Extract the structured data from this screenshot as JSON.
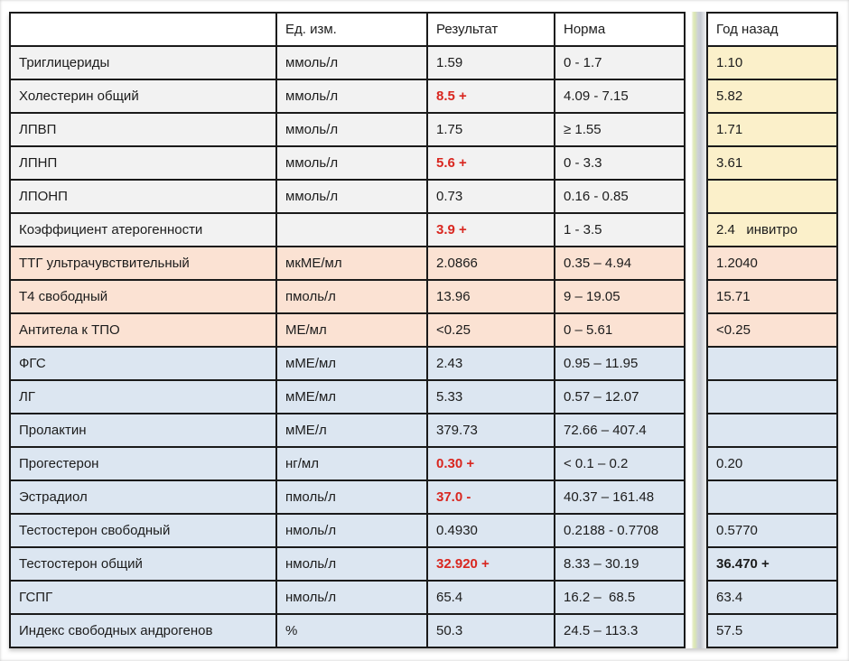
{
  "colors": {
    "border_dark": "#1a1a1a",
    "alert_red": "#d9261f",
    "group_lipid_bg": "#f2f2f2",
    "group_thyroid_bg": "#fbe2d3",
    "group_hormone_bg": "#dce6f1",
    "year_lipid_bg": "#fbf0ca"
  },
  "table": {
    "headers": {
      "name": "",
      "units": "Ед. изм.",
      "result": "Результат",
      "norm": "Норма"
    },
    "year_ago_header": "Год назад",
    "rows": [
      {
        "name": "Триглицериды",
        "units": "ммоль/л",
        "result": "1.59",
        "result_flag": "normal",
        "norm": "0 - 1.7",
        "year_ago": "1.10",
        "year_flag": "normal",
        "group": "lipid"
      },
      {
        "name": "Холестерин общий",
        "units": "ммоль/л",
        "result": "8.5 +",
        "result_flag": "alert",
        "norm": "4.09 - 7.15",
        "year_ago": "5.82",
        "year_flag": "normal",
        "group": "lipid"
      },
      {
        "name": "ЛПВП",
        "units": "ммоль/л",
        "result": "1.75",
        "result_flag": "normal",
        "norm": "≥ 1.55",
        "year_ago": "1.71",
        "year_flag": "normal",
        "group": "lipid"
      },
      {
        "name": "ЛПНП",
        "units": "ммоль/л",
        "result": "5.6 +",
        "result_flag": "alert",
        "norm": "0 - 3.3",
        "year_ago": "3.61",
        "year_flag": "normal",
        "group": "lipid"
      },
      {
        "name": "ЛПОНП",
        "units": "ммоль/л",
        "result": "0.73",
        "result_flag": "normal",
        "norm": "0.16 - 0.85",
        "year_ago": "",
        "year_flag": "normal",
        "group": "lipid"
      },
      {
        "name": "Коэффициент атерогенности",
        "units": "",
        "result": "3.9 +",
        "result_flag": "alert",
        "norm": "1 - 3.5",
        "year_ago": "2.4   инвитро",
        "year_flag": "normal",
        "group": "lipid"
      },
      {
        "name": "ТТГ ультрачувствительный",
        "units": "мкМЕ/мл",
        "result": "2.0866",
        "result_flag": "normal",
        "norm": "0.35 – 4.94",
        "year_ago": "1.2040",
        "year_flag": "normal",
        "group": "thyroid"
      },
      {
        "name": "Т4 свободный",
        "units": "пмоль/л",
        "result": "13.96",
        "result_flag": "normal",
        "norm": "9 – 19.05",
        "year_ago": "15.71",
        "year_flag": "normal",
        "group": "thyroid"
      },
      {
        "name": "Антитела к ТПО",
        "units": "МЕ/мл",
        "result": "<0.25",
        "result_flag": "normal",
        "norm": "0 – 5.61",
        "year_ago": "<0.25",
        "year_flag": "normal",
        "group": "thyroid"
      },
      {
        "name": "ФГС",
        "units": "мМЕ/мл",
        "result": "2.43",
        "result_flag": "normal",
        "norm": "0.95 – 11.95",
        "year_ago": "",
        "year_flag": "normal",
        "group": "hormone"
      },
      {
        "name": "ЛГ",
        "units": "мМЕ/мл",
        "result": "5.33",
        "result_flag": "normal",
        "norm": "0.57 – 12.07",
        "year_ago": "",
        "year_flag": "normal",
        "group": "hormone"
      },
      {
        "name": "Пролактин",
        "units": "мМЕ/л",
        "result": "379.73",
        "result_flag": "normal",
        "norm": "72.66 – 407.4",
        "year_ago": "",
        "year_flag": "normal",
        "group": "hormone"
      },
      {
        "name": "Прогестерон",
        "units": "нг/мл",
        "result": "0.30 +",
        "result_flag": "alert",
        "norm": "< 0.1 – 0.2",
        "year_ago": "0.20",
        "year_flag": "normal",
        "group": "hormone"
      },
      {
        "name": "Эстрадиол",
        "units": "пмоль/л",
        "result": "37.0 -",
        "result_flag": "alert",
        "norm": "40.37 – 161.48",
        "year_ago": "",
        "year_flag": "normal",
        "group": "hormone"
      },
      {
        "name": "Тестостерон свободный",
        "units": "нмоль/л",
        "result": "0.4930",
        "result_flag": "normal",
        "norm": "0.2188 - 0.7708",
        "year_ago": "0.5770",
        "year_flag": "normal",
        "group": "hormone"
      },
      {
        "name": "Тестостерон общий",
        "units": "нмоль/л",
        "result": "32.920 +",
        "result_flag": "alert",
        "norm": "8.33 – 30.19",
        "year_ago": "36.470 +",
        "year_flag": "bold",
        "group": "hormone"
      },
      {
        "name": "ГСПГ",
        "units": "нмоль/л",
        "result": "65.4",
        "result_flag": "normal",
        "norm": "16.2 –  68.5",
        "year_ago": "63.4",
        "year_flag": "normal",
        "group": "hormone"
      },
      {
        "name": "Индекс свободных андрогенов",
        "units": "%",
        "result": "50.3",
        "result_flag": "normal",
        "norm": "24.5 – 113.3",
        "year_ago": "57.5",
        "year_flag": "normal",
        "group": "hormone"
      }
    ]
  }
}
